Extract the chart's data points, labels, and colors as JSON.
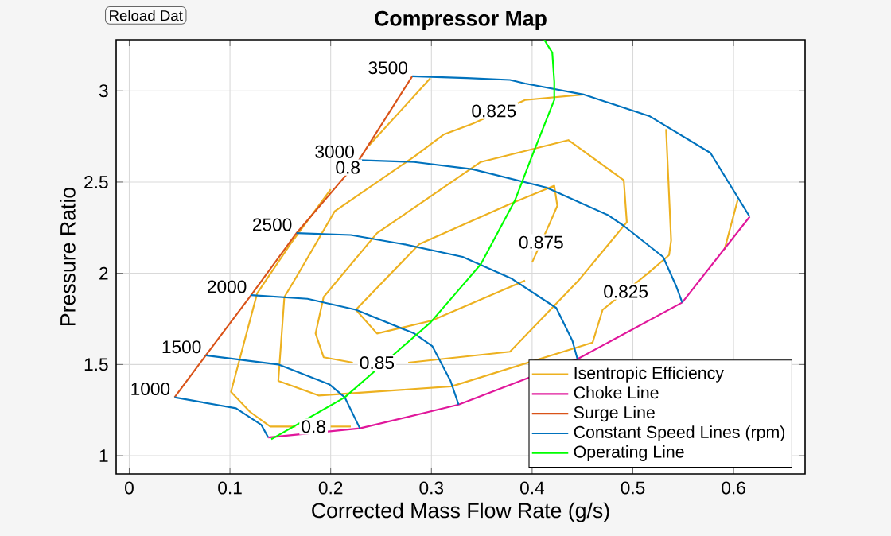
{
  "chart_data": {
    "type": "line",
    "title": "Compressor Map",
    "xlabel": "Corrected Mass Flow Rate (g/s)",
    "ylabel": "Pressure Ratio",
    "xlim": [
      -0.013,
      0.671
    ],
    "ylim": [
      0.9,
      3.28
    ],
    "xticks": [
      0,
      0.1,
      0.2,
      0.3,
      0.4,
      0.5,
      0.6
    ],
    "yticks": [
      1,
      1.5,
      2,
      2.5,
      3
    ],
    "grid": true,
    "legend": "bottom right",
    "series": [
      {
        "name": "Isentropic Efficiency",
        "color": "#edb120",
        "x": [
          0.299,
          0.238
        ],
        "values": [
          3.07,
          2.7
        ]
      },
      {
        "color": "#edb120",
        "x": [
          0.2,
          0.16,
          0.127,
          0.101,
          0.12,
          0.14,
          0.165
        ],
        "values": [
          2.46,
          2.16,
          1.89,
          1.35,
          1.24,
          1.16,
          1.16
        ]
      },
      {
        "color": "#edb120",
        "x": [
          0.2,
          0.22
        ],
        "values": [
          1.16,
          1.16
        ]
      },
      {
        "color": "#edb120",
        "x": [
          0.591,
          0.604
        ],
        "values": [
          2.13,
          2.4
        ]
      },
      {
        "color": "#edb120",
        "x": [
          0.451,
          0.393,
          0.341,
          0.312,
          0.283,
          0.204,
          0.167,
          0.154,
          0.148,
          0.188,
          0.32,
          0.46,
          0.47,
          0.515,
          0.536,
          0.538,
          0.533
        ],
        "values": [
          2.98,
          2.95,
          2.82,
          2.76,
          2.64,
          2.34,
          1.99,
          1.87,
          1.41,
          1.33,
          1.38,
          1.62,
          1.8,
          2.0,
          2.1,
          2.18,
          2.79
        ]
      },
      {
        "color": "#edb120",
        "x": [
          0.277,
          0.378,
          0.446,
          0.494,
          0.491,
          0.436,
          0.349,
          0.246,
          0.193,
          0.185,
          0.193,
          0.222
        ],
        "values": [
          1.51,
          1.57,
          1.96,
          2.28,
          2.51,
          2.73,
          2.61,
          2.22,
          1.87,
          1.67,
          1.54,
          1.51
        ]
      },
      {
        "color": "#edb120",
        "x": [
          0.393,
          0.3,
          0.246,
          0.225,
          0.288,
          0.378,
          0.422,
          0.425,
          0.418,
          0.4
        ],
        "values": [
          1.96,
          1.74,
          1.67,
          1.8,
          2.16,
          2.38,
          2.48,
          2.37,
          2.28,
          2.06
        ]
      },
      {
        "name": "Choke Line",
        "color": "#e0179b",
        "x": [
          0.138,
          0.229,
          0.327,
          0.445,
          0.549,
          0.616
        ],
        "values": [
          1.1,
          1.15,
          1.28,
          1.53,
          1.84,
          2.31
        ]
      },
      {
        "name": "Surge Line",
        "color": "#d95319",
        "x": [
          0.045,
          0.076,
          0.121,
          0.166,
          0.228,
          0.281
        ],
        "values": [
          1.32,
          1.55,
          1.88,
          2.22,
          2.62,
          3.08
        ]
      },
      {
        "name": "Constant Speed Lines (rpm)",
        "color": "#0072bd",
        "x": [
          0.045,
          0.106,
          0.131,
          0.138
        ],
        "values": [
          1.32,
          1.26,
          1.17,
          1.1
        ]
      },
      {
        "color": "#0072bd",
        "x": [
          0.076,
          0.148,
          0.199,
          0.214,
          0.229
        ],
        "values": [
          1.55,
          1.5,
          1.39,
          1.32,
          1.15
        ]
      },
      {
        "color": "#0072bd",
        "x": [
          0.121,
          0.177,
          0.225,
          0.283,
          0.301,
          0.319,
          0.327
        ],
        "values": [
          1.88,
          1.86,
          1.8,
          1.67,
          1.6,
          1.41,
          1.28
        ]
      },
      {
        "color": "#0072bd",
        "x": [
          0.166,
          0.22,
          0.272,
          0.331,
          0.38,
          0.424,
          0.44,
          0.445
        ],
        "values": [
          2.22,
          2.21,
          2.16,
          2.09,
          1.97,
          1.81,
          1.63,
          1.53
        ]
      },
      {
        "color": "#0072bd",
        "x": [
          0.228,
          0.283,
          0.341,
          0.414,
          0.475,
          0.491,
          0.53,
          0.543,
          0.549
        ],
        "values": [
          2.62,
          2.61,
          2.57,
          2.47,
          2.32,
          2.26,
          2.09,
          1.93,
          1.84
        ]
      },
      {
        "color": "#0072bd",
        "x": [
          0.281,
          0.335,
          0.378,
          0.393,
          0.451,
          0.517,
          0.577,
          0.616
        ],
        "values": [
          3.08,
          3.07,
          3.06,
          3.04,
          2.98,
          2.86,
          2.66,
          2.31
        ]
      },
      {
        "name": "Operating Line",
        "color": "#00ff00",
        "x": [
          0.141,
          0.214,
          0.299,
          0.335,
          0.349,
          0.383,
          0.399,
          0.422,
          0.422,
          0.42,
          0.412
        ],
        "values": [
          1.09,
          1.32,
          1.73,
          1.96,
          2.05,
          2.4,
          2.63,
          2.95,
          3.05,
          3.21,
          3.28
        ]
      }
    ],
    "annotations": [
      "Reload Dat",
      {
        "text": "1000",
        "x": 0.045,
        "y": 1.32
      },
      {
        "text": "1500",
        "x": 0.076,
        "y": 1.55
      },
      {
        "text": "2000",
        "x": 0.121,
        "y": 1.88
      },
      {
        "text": "2500",
        "x": 0.166,
        "y": 2.22
      },
      {
        "text": "3000",
        "x": 0.228,
        "y": 2.62
      },
      {
        "text": "3500",
        "x": 0.281,
        "y": 3.08
      },
      {
        "text": "0.8",
        "x": 0.183,
        "y": 1.16
      },
      {
        "text": "0.8",
        "x": 0.217,
        "y": 2.58
      },
      {
        "text": "0.825",
        "x": 0.362,
        "y": 2.89
      },
      {
        "text": "0.825",
        "x": 0.493,
        "y": 1.9
      },
      {
        "text": "0.85",
        "x": 0.246,
        "y": 1.51
      },
      {
        "text": "0.875",
        "x": 0.409,
        "y": 2.17
      }
    ]
  }
}
